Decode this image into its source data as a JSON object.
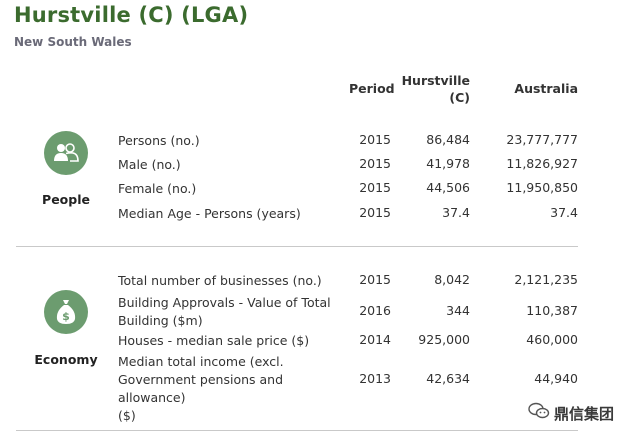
{
  "title": "Hurstville (C) (LGA)",
  "subtitle": "New South Wales",
  "headers": {
    "period": "Period",
    "hurstville": [
      "Hurstville",
      "(C)"
    ],
    "australia": "Australia"
  },
  "sections": [
    {
      "name": "People",
      "icon": "people-icon",
      "rows": [
        {
          "label": "Persons (no.)",
          "period": "2015",
          "hurstville": "86,484",
          "australia": "23,777,777"
        },
        {
          "label": "Male (no.)",
          "period": "2015",
          "hurstville": "41,978",
          "australia": "11,826,927"
        },
        {
          "label": "Female (no.)",
          "period": "2015",
          "hurstville": "44,506",
          "australia": "11,950,850"
        },
        {
          "label": "Median Age - Persons (years)",
          "period": "2015",
          "hurstville": "37.4",
          "australia": "37.4"
        }
      ]
    },
    {
      "name": "Economy",
      "icon": "money-bag-icon",
      "rows": [
        {
          "label": "Total number of businesses (no.)",
          "period": "2015",
          "hurstville": "8,042",
          "australia": "2,121,235"
        },
        {
          "label": [
            "Building Approvals - Value of Total",
            "Building ($m)"
          ],
          "period": "2016",
          "hurstville": "344",
          "australia": "110,387"
        },
        {
          "label": "Houses - median sale price ($)",
          "period": "2014",
          "hurstville": "925,000",
          "australia": "460,000"
        },
        {
          "label": [
            "Median total income (excl.",
            "Government pensions and allowance)",
            "($)"
          ],
          "period": "2013",
          "hurstville": "42,634",
          "australia": "44,940"
        }
      ]
    }
  ],
  "watermark": "鼎信集团",
  "colors": {
    "title": "#3b6b2e",
    "icon_bg": "#6c9c6f",
    "divider": "#c9c9c9"
  }
}
